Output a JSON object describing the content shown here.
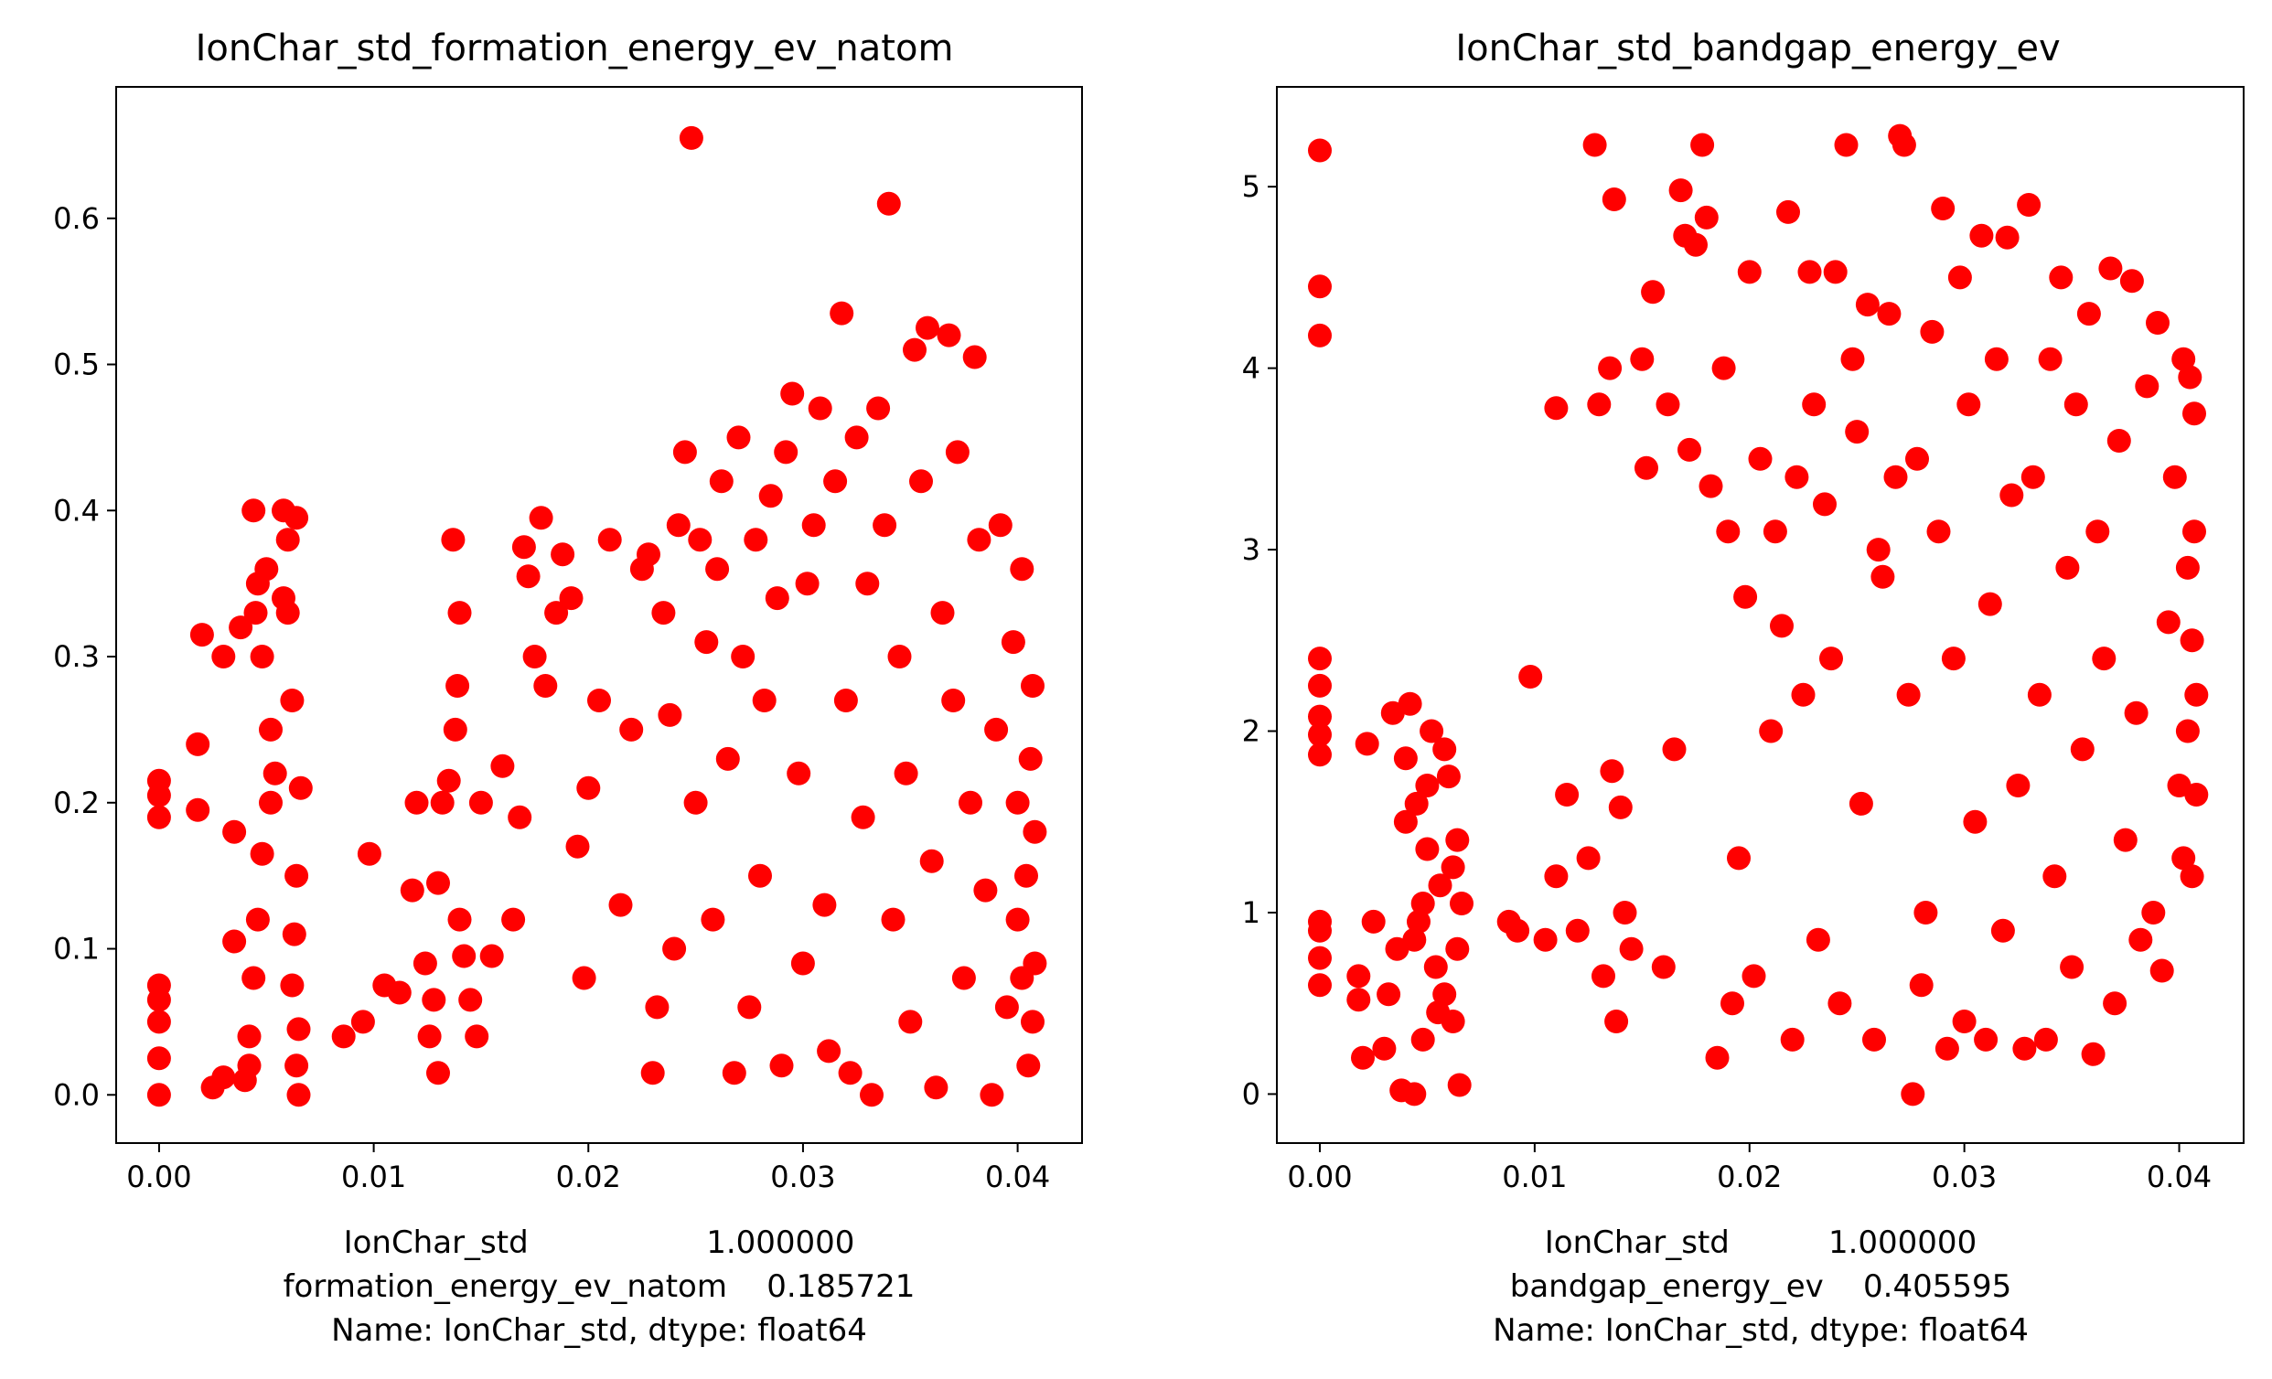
{
  "chart_data": [
    {
      "type": "scatter",
      "title": "IonChar_std_formation_energy_ev_natom",
      "xlabel_lines": [
        "IonChar_std                  1.000000",
        "formation_energy_ev_natom    0.185721",
        "Name: IonChar_std, dtype: float64"
      ],
      "ylabel": "",
      "xlim": [
        -0.002,
        0.043
      ],
      "ylim": [
        -0.033,
        0.69
      ],
      "x_ticks": [
        "0.00",
        "0.01",
        "0.02",
        "0.03",
        "0.04"
      ],
      "y_ticks": [
        "0.0",
        "0.1",
        "0.2",
        "0.3",
        "0.4",
        "0.5",
        "0.6"
      ],
      "marker_color": "#ff0000",
      "grid": false,
      "legend": "none",
      "points": [
        [
          0.0,
          0.0
        ],
        [
          0.0,
          0.025
        ],
        [
          0.0,
          0.05
        ],
        [
          0.0,
          0.065
        ],
        [
          0.0,
          0.075
        ],
        [
          0.0,
          0.19
        ],
        [
          0.0,
          0.205
        ],
        [
          0.0,
          0.215
        ],
        [
          0.0018,
          0.24
        ],
        [
          0.0018,
          0.195
        ],
        [
          0.002,
          0.315
        ],
        [
          0.0025,
          0.005
        ],
        [
          0.003,
          0.012
        ],
        [
          0.003,
          0.3
        ],
        [
          0.0035,
          0.105
        ],
        [
          0.0035,
          0.18
        ],
        [
          0.0038,
          0.32
        ],
        [
          0.004,
          0.01
        ],
        [
          0.0042,
          0.04
        ],
        [
          0.0044,
          0.4
        ],
        [
          0.0045,
          0.33
        ],
        [
          0.0046,
          0.35
        ],
        [
          0.0048,
          0.3
        ],
        [
          0.005,
          0.36
        ],
        [
          0.0052,
          0.25
        ],
        [
          0.0054,
          0.22
        ],
        [
          0.0058,
          0.4
        ],
        [
          0.006,
          0.38
        ],
        [
          0.0064,
          0.395
        ],
        [
          0.0062,
          0.27
        ],
        [
          0.006,
          0.33
        ],
        [
          0.0058,
          0.34
        ],
        [
          0.0065,
          0.0
        ],
        [
          0.0064,
          0.02
        ],
        [
          0.0066,
          0.21
        ],
        [
          0.0064,
          0.15
        ],
        [
          0.0063,
          0.11
        ],
        [
          0.0062,
          0.075
        ],
        [
          0.0065,
          0.045
        ],
        [
          0.0052,
          0.2
        ],
        [
          0.0048,
          0.165
        ],
        [
          0.0046,
          0.12
        ],
        [
          0.0044,
          0.08
        ],
        [
          0.0042,
          0.02
        ],
        [
          0.0086,
          0.04
        ],
        [
          0.0095,
          0.05
        ],
        [
          0.0098,
          0.165
        ],
        [
          0.0105,
          0.075
        ],
        [
          0.0112,
          0.07
        ],
        [
          0.0118,
          0.14
        ],
        [
          0.012,
          0.2
        ],
        [
          0.0124,
          0.09
        ],
        [
          0.0126,
          0.04
        ],
        [
          0.0128,
          0.065
        ],
        [
          0.013,
          0.015
        ],
        [
          0.013,
          0.145
        ],
        [
          0.0132,
          0.2
        ],
        [
          0.0135,
          0.215
        ],
        [
          0.0137,
          0.38
        ],
        [
          0.0138,
          0.25
        ],
        [
          0.0139,
          0.28
        ],
        [
          0.014,
          0.33
        ],
        [
          0.014,
          0.12
        ],
        [
          0.0142,
          0.095
        ],
        [
          0.0145,
          0.065
        ],
        [
          0.0148,
          0.04
        ],
        [
          0.015,
          0.2
        ],
        [
          0.0155,
          0.095
        ],
        [
          0.016,
          0.225
        ],
        [
          0.0165,
          0.12
        ],
        [
          0.0168,
          0.19
        ],
        [
          0.017,
          0.375
        ],
        [
          0.0172,
          0.355
        ],
        [
          0.0175,
          0.3
        ],
        [
          0.0178,
          0.395
        ],
        [
          0.018,
          0.28
        ],
        [
          0.0185,
          0.33
        ],
        [
          0.0188,
          0.37
        ],
        [
          0.0192,
          0.34
        ],
        [
          0.0195,
          0.17
        ],
        [
          0.0198,
          0.08
        ],
        [
          0.02,
          0.21
        ],
        [
          0.0205,
          0.27
        ],
        [
          0.021,
          0.38
        ],
        [
          0.0215,
          0.13
        ],
        [
          0.022,
          0.25
        ],
        [
          0.0225,
          0.36
        ],
        [
          0.0228,
          0.37
        ],
        [
          0.023,
          0.015
        ],
        [
          0.0232,
          0.06
        ],
        [
          0.0235,
          0.33
        ],
        [
          0.0238,
          0.26
        ],
        [
          0.024,
          0.1
        ],
        [
          0.0242,
          0.39
        ],
        [
          0.0245,
          0.44
        ],
        [
          0.0248,
          0.655
        ],
        [
          0.025,
          0.2
        ],
        [
          0.0252,
          0.38
        ],
        [
          0.0255,
          0.31
        ],
        [
          0.0258,
          0.12
        ],
        [
          0.026,
          0.36
        ],
        [
          0.0262,
          0.42
        ],
        [
          0.0265,
          0.23
        ],
        [
          0.0268,
          0.015
        ],
        [
          0.027,
          0.45
        ],
        [
          0.0272,
          0.3
        ],
        [
          0.0275,
          0.06
        ],
        [
          0.0278,
          0.38
        ],
        [
          0.028,
          0.15
        ],
        [
          0.0282,
          0.27
        ],
        [
          0.0285,
          0.41
        ],
        [
          0.0288,
          0.34
        ],
        [
          0.029,
          0.02
        ],
        [
          0.0292,
          0.44
        ],
        [
          0.0295,
          0.48
        ],
        [
          0.0298,
          0.22
        ],
        [
          0.03,
          0.09
        ],
        [
          0.0302,
          0.35
        ],
        [
          0.0305,
          0.39
        ],
        [
          0.0308,
          0.47
        ],
        [
          0.031,
          0.13
        ],
        [
          0.0312,
          0.03
        ],
        [
          0.0315,
          0.42
        ],
        [
          0.0318,
          0.535
        ],
        [
          0.032,
          0.27
        ],
        [
          0.0322,
          0.015
        ],
        [
          0.0325,
          0.45
        ],
        [
          0.0328,
          0.19
        ],
        [
          0.033,
          0.35
        ],
        [
          0.0332,
          0.0
        ],
        [
          0.0335,
          0.47
        ],
        [
          0.0338,
          0.39
        ],
        [
          0.034,
          0.61
        ],
        [
          0.0342,
          0.12
        ],
        [
          0.0345,
          0.3
        ],
        [
          0.0348,
          0.22
        ],
        [
          0.035,
          0.05
        ],
        [
          0.0352,
          0.51
        ],
        [
          0.0355,
          0.42
        ],
        [
          0.0358,
          0.525
        ],
        [
          0.036,
          0.16
        ],
        [
          0.0362,
          0.005
        ],
        [
          0.0365,
          0.33
        ],
        [
          0.0368,
          0.52
        ],
        [
          0.037,
          0.27
        ],
        [
          0.0372,
          0.44
        ],
        [
          0.0375,
          0.08
        ],
        [
          0.0378,
          0.2
        ],
        [
          0.038,
          0.505
        ],
        [
          0.0382,
          0.38
        ],
        [
          0.0385,
          0.14
        ],
        [
          0.0388,
          0.0
        ],
        [
          0.039,
          0.25
        ],
        [
          0.0392,
          0.39
        ],
        [
          0.0395,
          0.06
        ],
        [
          0.0398,
          0.31
        ],
        [
          0.04,
          0.12
        ],
        [
          0.0402,
          0.36
        ],
        [
          0.0405,
          0.02
        ],
        [
          0.0407,
          0.28
        ],
        [
          0.0408,
          0.18
        ],
        [
          0.0408,
          0.09
        ],
        [
          0.0407,
          0.05
        ],
        [
          0.0406,
          0.23
        ],
        [
          0.0404,
          0.15
        ],
        [
          0.0402,
          0.08
        ],
        [
          0.04,
          0.2
        ]
      ]
    },
    {
      "type": "scatter",
      "title": "IonChar_std_bandgap_energy_ev",
      "xlabel_lines": [
        "IonChar_std          1.000000",
        "bandgap_energy_ev    0.405595",
        "Name: IonChar_std, dtype: float64"
      ],
      "ylabel": "",
      "xlim": [
        -0.002,
        0.043
      ],
      "ylim": [
        -0.27,
        5.55
      ],
      "x_ticks": [
        "0.00",
        "0.01",
        "0.02",
        "0.03",
        "0.04"
      ],
      "y_ticks": [
        "0",
        "1",
        "2",
        "3",
        "4",
        "5"
      ],
      "marker_color": "#ff0000",
      "grid": false,
      "legend": "none",
      "points": [
        [
          0.0,
          5.2
        ],
        [
          0.0,
          4.45
        ],
        [
          0.0,
          4.18
        ],
        [
          0.0,
          2.4
        ],
        [
          0.0,
          2.25
        ],
        [
          0.0,
          2.08
        ],
        [
          0.0,
          1.98
        ],
        [
          0.0,
          1.87
        ],
        [
          0.0,
          0.95
        ],
        [
          0.0,
          0.9
        ],
        [
          0.0,
          0.75
        ],
        [
          0.0,
          0.6
        ],
        [
          0.0018,
          0.52
        ],
        [
          0.0018,
          0.65
        ],
        [
          0.002,
          0.2
        ],
        [
          0.0022,
          1.93
        ],
        [
          0.0025,
          0.95
        ],
        [
          0.003,
          0.25
        ],
        [
          0.0032,
          0.55
        ],
        [
          0.0034,
          2.1
        ],
        [
          0.0036,
          0.8
        ],
        [
          0.0038,
          0.02
        ],
        [
          0.004,
          1.85
        ],
        [
          0.0042,
          2.15
        ],
        [
          0.0044,
          0.0
        ],
        [
          0.0045,
          1.6
        ],
        [
          0.0046,
          0.95
        ],
        [
          0.0048,
          0.3
        ],
        [
          0.005,
          1.35
        ],
        [
          0.0052,
          2.0
        ],
        [
          0.0054,
          0.7
        ],
        [
          0.0056,
          1.15
        ],
        [
          0.0058,
          0.55
        ],
        [
          0.006,
          1.75
        ],
        [
          0.0062,
          0.4
        ],
        [
          0.0064,
          1.4
        ],
        [
          0.0065,
          0.05
        ],
        [
          0.0066,
          1.05
        ],
        [
          0.0064,
          0.8
        ],
        [
          0.0062,
          1.25
        ],
        [
          0.0058,
          1.9
        ],
        [
          0.0055,
          0.45
        ],
        [
          0.005,
          1.7
        ],
        [
          0.0048,
          1.05
        ],
        [
          0.0044,
          0.85
        ],
        [
          0.004,
          1.5
        ],
        [
          0.0088,
          0.95
        ],
        [
          0.0092,
          0.9
        ],
        [
          0.0098,
          2.3
        ],
        [
          0.0105,
          0.85
        ],
        [
          0.011,
          3.78
        ],
        [
          0.011,
          1.2
        ],
        [
          0.0115,
          1.65
        ],
        [
          0.012,
          0.9
        ],
        [
          0.0125,
          1.3
        ],
        [
          0.0128,
          5.23
        ],
        [
          0.013,
          3.8
        ],
        [
          0.0132,
          0.65
        ],
        [
          0.0135,
          4.0
        ],
        [
          0.0136,
          1.78
        ],
        [
          0.0137,
          4.93
        ],
        [
          0.0138,
          0.4
        ],
        [
          0.014,
          1.58
        ],
        [
          0.0142,
          1.0
        ],
        [
          0.0145,
          0.8
        ],
        [
          0.015,
          4.05
        ],
        [
          0.0152,
          3.45
        ],
        [
          0.0155,
          4.42
        ],
        [
          0.016,
          0.7
        ],
        [
          0.0162,
          3.8
        ],
        [
          0.0165,
          1.9
        ],
        [
          0.0168,
          4.98
        ],
        [
          0.017,
          4.73
        ],
        [
          0.0172,
          3.55
        ],
        [
          0.0175,
          4.68
        ],
        [
          0.0178,
          5.23
        ],
        [
          0.018,
          4.83
        ],
        [
          0.0182,
          3.35
        ],
        [
          0.0185,
          0.2
        ],
        [
          0.0188,
          4.0
        ],
        [
          0.019,
          3.1
        ],
        [
          0.0192,
          0.5
        ],
        [
          0.0195,
          1.3
        ],
        [
          0.0198,
          2.74
        ],
        [
          0.02,
          4.53
        ],
        [
          0.0202,
          0.65
        ],
        [
          0.0205,
          3.5
        ],
        [
          0.021,
          2.0
        ],
        [
          0.0212,
          3.1
        ],
        [
          0.0215,
          2.58
        ],
        [
          0.0218,
          4.86
        ],
        [
          0.022,
          0.3
        ],
        [
          0.0222,
          3.4
        ],
        [
          0.0225,
          2.2
        ],
        [
          0.0228,
          4.53
        ],
        [
          0.023,
          3.8
        ],
        [
          0.0232,
          0.85
        ],
        [
          0.0235,
          3.25
        ],
        [
          0.0238,
          2.4
        ],
        [
          0.024,
          4.53
        ],
        [
          0.0242,
          0.5
        ],
        [
          0.0245,
          5.23
        ],
        [
          0.0248,
          4.05
        ],
        [
          0.025,
          3.65
        ],
        [
          0.0252,
          1.6
        ],
        [
          0.0255,
          4.35
        ],
        [
          0.0258,
          0.3
        ],
        [
          0.026,
          3.0
        ],
        [
          0.0262,
          2.85
        ],
        [
          0.0265,
          4.3
        ],
        [
          0.0268,
          3.4
        ],
        [
          0.027,
          5.28
        ],
        [
          0.0272,
          5.23
        ],
        [
          0.0274,
          2.2
        ],
        [
          0.0276,
          0.0
        ],
        [
          0.0278,
          3.5
        ],
        [
          0.028,
          0.6
        ],
        [
          0.0282,
          1.0
        ],
        [
          0.0285,
          4.2
        ],
        [
          0.0288,
          3.1
        ],
        [
          0.029,
          4.88
        ],
        [
          0.0292,
          0.25
        ],
        [
          0.0295,
          2.4
        ],
        [
          0.0298,
          4.5
        ],
        [
          0.03,
          0.4
        ],
        [
          0.0302,
          3.8
        ],
        [
          0.0305,
          1.5
        ],
        [
          0.0308,
          4.73
        ],
        [
          0.031,
          0.3
        ],
        [
          0.0312,
          2.7
        ],
        [
          0.0315,
          4.05
        ],
        [
          0.0318,
          0.9
        ],
        [
          0.032,
          4.72
        ],
        [
          0.0322,
          3.3
        ],
        [
          0.0325,
          1.7
        ],
        [
          0.0328,
          0.25
        ],
        [
          0.033,
          4.9
        ],
        [
          0.0332,
          3.4
        ],
        [
          0.0335,
          2.2
        ],
        [
          0.0338,
          0.3
        ],
        [
          0.034,
          4.05
        ],
        [
          0.0342,
          1.2
        ],
        [
          0.0345,
          4.5
        ],
        [
          0.0348,
          2.9
        ],
        [
          0.035,
          0.7
        ],
        [
          0.0352,
          3.8
        ],
        [
          0.0355,
          1.9
        ],
        [
          0.0358,
          4.3
        ],
        [
          0.036,
          0.22
        ],
        [
          0.0362,
          3.1
        ],
        [
          0.0365,
          2.4
        ],
        [
          0.0368,
          4.55
        ],
        [
          0.037,
          0.5
        ],
        [
          0.0372,
          3.6
        ],
        [
          0.0375,
          1.4
        ],
        [
          0.0378,
          4.48
        ],
        [
          0.038,
          2.1
        ],
        [
          0.0382,
          0.85
        ],
        [
          0.0385,
          3.9
        ],
        [
          0.0388,
          1.0
        ],
        [
          0.039,
          4.25
        ],
        [
          0.0392,
          0.68
        ],
        [
          0.0395,
          2.6
        ],
        [
          0.0398,
          3.4
        ],
        [
          0.04,
          1.7
        ],
        [
          0.0402,
          4.05
        ],
        [
          0.0404,
          2.9
        ],
        [
          0.0406,
          1.2
        ],
        [
          0.0407,
          3.75
        ],
        [
          0.0408,
          2.2
        ],
        [
          0.0408,
          1.65
        ],
        [
          0.0407,
          3.1
        ],
        [
          0.0406,
          2.5
        ],
        [
          0.0405,
          3.95
        ],
        [
          0.0404,
          2.0
        ],
        [
          0.0402,
          1.3
        ]
      ]
    }
  ]
}
